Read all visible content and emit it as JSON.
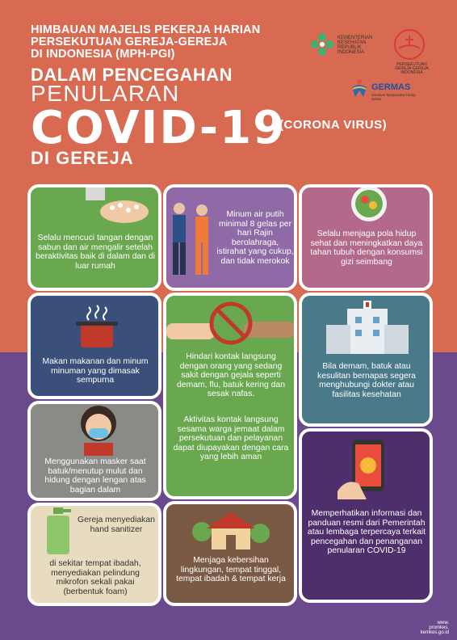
{
  "header": {
    "line1": "HIMBAUAN MAJELIS PEKERJA HARIAN",
    "line2": "PERSEKUTUAN GEREJA-GEREJA",
    "line3": "DI INDONESIA (MPH-PGI)",
    "line4": "DALAM PENCEGAHAN",
    "line5": "PENULARAN",
    "line6": "COVID-19",
    "line7": "(CORONA VIRUS)",
    "line8": "DI GEREJA"
  },
  "logos": {
    "kemenkes": "KEMENTERIAN KESEHATAN REPUBLIK INDONESIA",
    "oikoumene_arc": "oikoumene",
    "pgi": "PERSEKUTUAN GEREJA-GEREJA INDONESIA",
    "germas": "GERMAS",
    "germas_sub": "Gerakan Masyarakat Hidup Sehat"
  },
  "cards": {
    "c1": "Selalu mencuci tangan dengan sabun dan air mengalir setelah berakti­vitas baik di dalam dan di luar rumah",
    "c2": "Minum air putih minimal 8 gelas per hari Rajin berolahraga, istirahat yang cukup, dan tidak merokok",
    "c3": "Selalu menjaga pola hidup sehat dan meningkatkan daya tahan tubuh dengan konsumsi gizi seimbang",
    "c4": "Makan makanan dan minum minuman yang dimasak sempurna",
    "c5a": "Hindari kontak langsung dengan orang yang sedang sakit dengan gejala seperti demam, flu, batuk kering dan sesak nafas.",
    "c5b": "Aktivitas kontak langsung sesama warga jemaat dalam persekutuan dan pelayanan dapat diupayakan dengan cara yang lebih aman",
    "c6": "Bila demam, batuk atau kesulitan bernapas segera menghubungi dokter atau fasilitas kesehatan",
    "c7": "Menggunakan masker saat batuk/menutup mulut dan hidung dengan lengan atas bagian dalam",
    "c8": "Memperhatikan informasi dan panduan resmi dari Pemerintah atau lembaga terpercaya terkait pencegahan dan penanganan penularan COVID-19",
    "c9a": "Gereja menyediakan hand sanitizer",
    "c9b": "di sekitar tempat ibadah, menyediakan pelindung mikrofon sekali pakai (berbentuk foam)",
    "c10": "Menjaga kebersihan lingkungan, tempat tinggal, tempat ibadah & tempat kerja"
  },
  "footer": {
    "l1": "www.",
    "l2": "promkes.",
    "l3": "kemkes.go.id"
  },
  "colors": {
    "top_bg": "#d86a51",
    "bottom_bg": "#6a4a8c"
  }
}
